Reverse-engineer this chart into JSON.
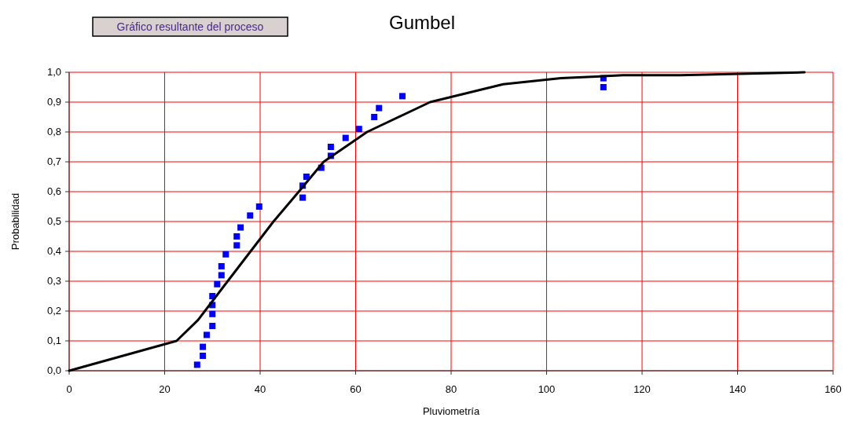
{
  "chart_data": {
    "type": "scatter",
    "title": "Gumbel",
    "xlabel": "Pluviometría",
    "ylabel": "Probabilidad",
    "annotations": [
      "Gráfico resultante del proceso"
    ],
    "series": [
      {
        "color": "#0000ff",
        "marker": "square",
        "x": [
          26.8,
          28,
          28,
          28.8,
          30,
          30,
          30,
          30,
          31,
          31.9,
          31.9,
          32.8,
          35.1,
          35.1,
          35.9,
          37.9,
          39.8,
          48.9,
          48.9,
          49.7,
          52.8,
          54.8,
          54.8,
          57.9,
          60.7,
          63.9,
          64.9,
          69.8,
          111.9,
          111.9
        ],
        "values": [
          0.02,
          0.05,
          0.08,
          0.12,
          0.15,
          0.19,
          0.22,
          0.25,
          0.29,
          0.32,
          0.35,
          0.39,
          0.42,
          0.45,
          0.48,
          0.52,
          0.55,
          0.58,
          0.62,
          0.65,
          0.68,
          0.72,
          0.75,
          0.78,
          0.81,
          0.85,
          0.88,
          0.92,
          0.95,
          0.98
        ]
      },
      {
        "type": "line",
        "color": "#000000",
        "marker": "none",
        "x": [
          0,
          22.5,
          27,
          33.2,
          42.8,
          48.1,
          53.3,
          62.4,
          75.6,
          90.9,
          103,
          116,
          128,
          154
        ],
        "values": [
          0,
          0.1,
          0.17,
          0.3,
          0.5,
          0.6,
          0.7,
          0.8,
          0.9,
          0.96,
          0.98,
          0.99,
          0.99,
          1.0
        ]
      }
    ],
    "xlim": [
      0,
      160
    ],
    "xticks": [
      0,
      20,
      40,
      60,
      80,
      100,
      120,
      140,
      160
    ],
    "ylim": [
      0,
      1
    ],
    "yticks": [
      {
        "value": 0,
        "label": "0,0"
      },
      {
        "value": 0.1,
        "label": "0,1"
      },
      {
        "value": 0.2,
        "label": "0,2"
      },
      {
        "value": 0.3,
        "label": "0,3"
      },
      {
        "value": 0.4,
        "label": "0,4"
      },
      {
        "value": 0.5,
        "label": "0,5"
      },
      {
        "value": 0.6,
        "label": "0,6"
      },
      {
        "value": 0.7,
        "label": "0,7"
      },
      {
        "value": 0.8,
        "label": "0,8"
      },
      {
        "value": 0.9,
        "label": "0,9"
      },
      {
        "value": 1,
        "label": "1,0"
      }
    ],
    "grid": true
  }
}
